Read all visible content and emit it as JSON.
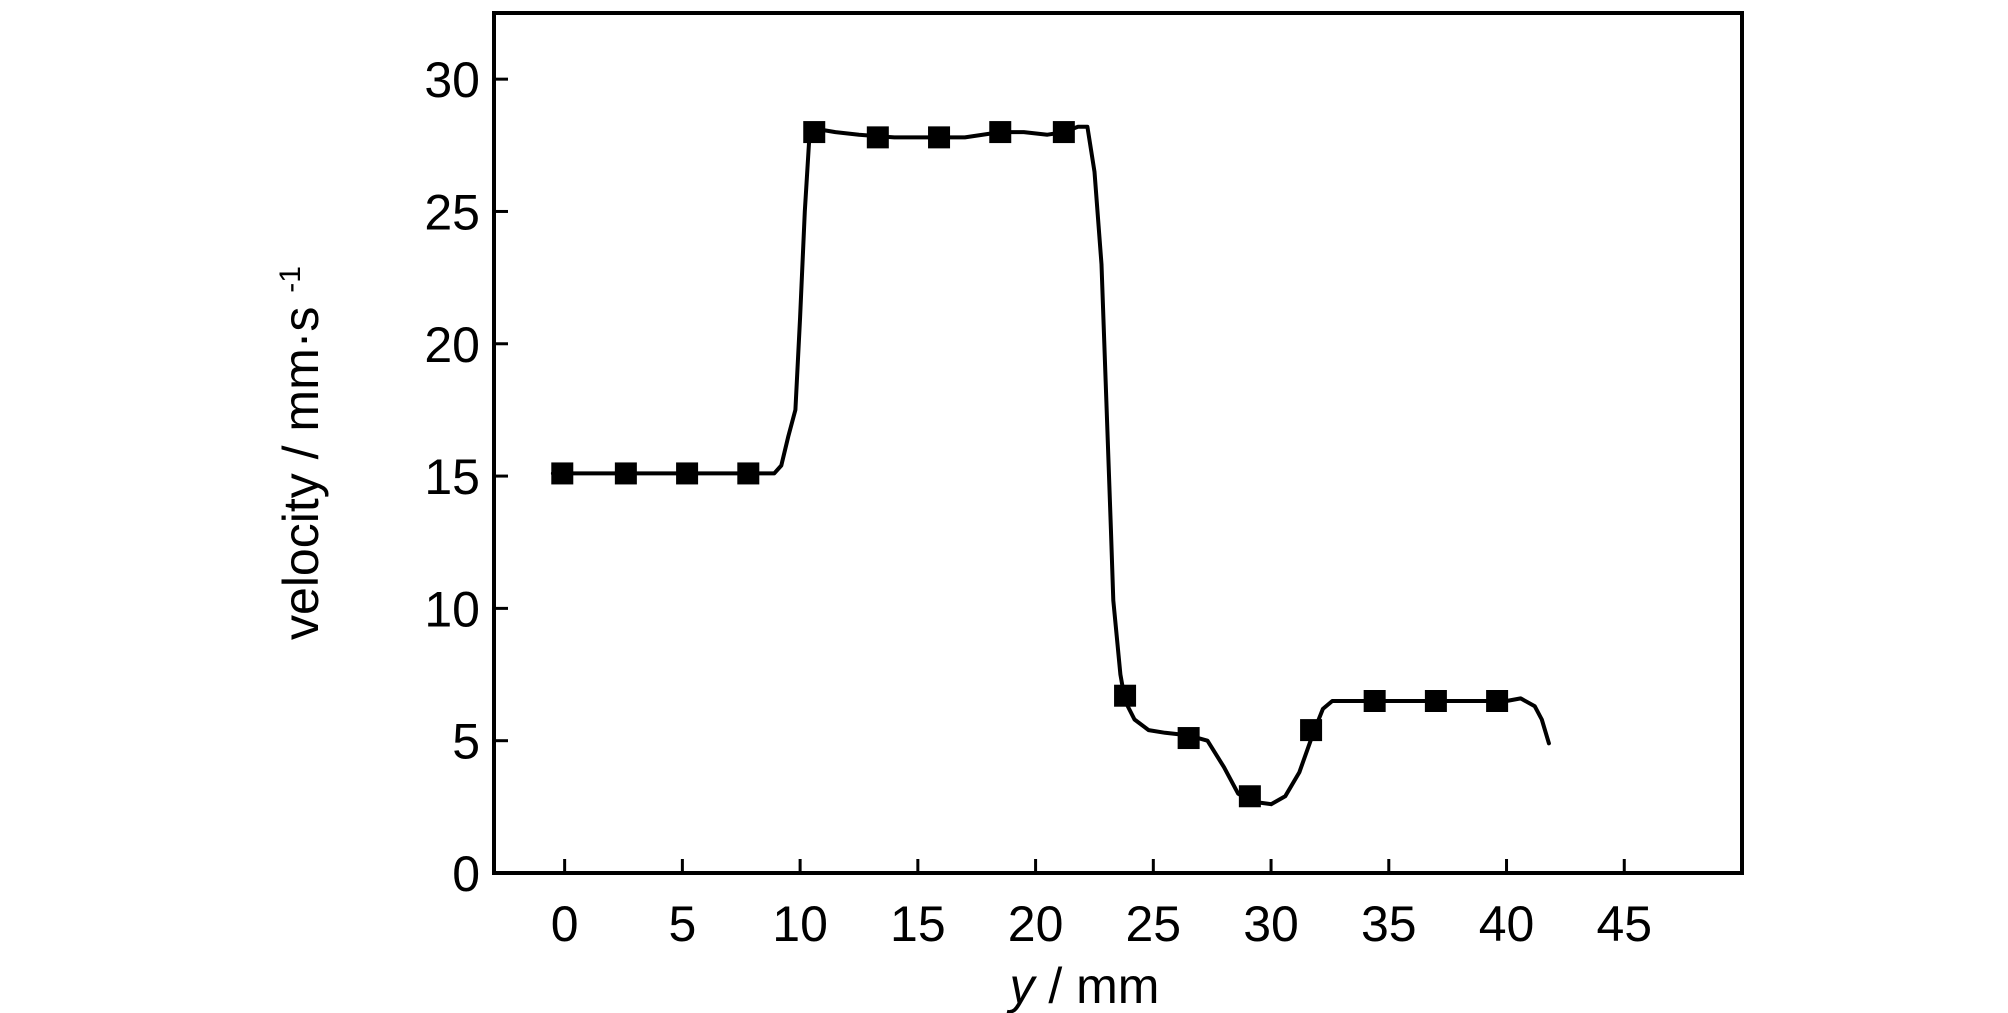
{
  "chart_data": {
    "type": "line",
    "title": "",
    "xlabel": "y / mm",
    "xlabel_var": "y",
    "xlabel_unit": " / mm",
    "ylabel": "velocity / mm·s-1",
    "ylabel_main": "velocity / mm·s",
    "ylabel_sup": "-1",
    "xlim": [
      -3,
      50
    ],
    "ylim": [
      0,
      32.5
    ],
    "xticks": [
      0,
      5,
      10,
      15,
      20,
      25,
      30,
      35,
      40,
      45
    ],
    "yticks": [
      0,
      5,
      10,
      15,
      20,
      25,
      30
    ],
    "grid": false,
    "legend": "none",
    "line_color": "#000000",
    "marker_color": "#000000",
    "marker_shape": "square",
    "series": [
      {
        "curve": [
          [
            -0.5,
            15.1
          ],
          [
            8.9,
            15.1
          ],
          [
            9.2,
            15.4
          ],
          [
            9.5,
            16.5
          ],
          [
            9.8,
            17.5
          ],
          [
            10.0,
            21
          ],
          [
            10.2,
            25
          ],
          [
            10.4,
            27.9
          ],
          [
            10.8,
            28.1
          ],
          [
            11.5,
            28.0
          ],
          [
            12.5,
            27.9
          ],
          [
            14,
            27.8
          ],
          [
            15.5,
            27.8
          ],
          [
            17,
            27.8
          ],
          [
            18.5,
            28.0
          ],
          [
            19.5,
            28.0
          ],
          [
            20.5,
            27.9
          ],
          [
            21.2,
            28.0
          ],
          [
            21.8,
            28.2
          ],
          [
            22.2,
            28.2
          ],
          [
            22.5,
            26.5
          ],
          [
            22.8,
            23
          ],
          [
            23.0,
            18
          ],
          [
            23.2,
            13
          ],
          [
            23.3,
            10.3
          ],
          [
            23.6,
            7.5
          ],
          [
            23.8,
            6.5
          ],
          [
            24.2,
            5.8
          ],
          [
            24.8,
            5.4
          ],
          [
            25.5,
            5.3
          ],
          [
            26.5,
            5.2
          ],
          [
            27.3,
            5.0
          ],
          [
            28.0,
            4.0
          ],
          [
            28.6,
            3.0
          ],
          [
            29.2,
            2.7
          ],
          [
            30.0,
            2.6
          ],
          [
            30.6,
            2.9
          ],
          [
            31.2,
            3.8
          ],
          [
            31.8,
            5.3
          ],
          [
            32.2,
            6.2
          ],
          [
            32.6,
            6.5
          ],
          [
            34,
            6.5
          ],
          [
            36,
            6.5
          ],
          [
            38,
            6.5
          ],
          [
            40,
            6.5
          ],
          [
            40.6,
            6.6
          ],
          [
            41.2,
            6.3
          ],
          [
            41.5,
            5.8
          ],
          [
            41.8,
            4.9
          ]
        ],
        "markers": [
          [
            -0.1,
            15.1
          ],
          [
            2.6,
            15.1
          ],
          [
            5.2,
            15.1
          ],
          [
            7.8,
            15.1
          ],
          [
            10.6,
            28.0
          ],
          [
            13.3,
            27.8
          ],
          [
            15.9,
            27.8
          ],
          [
            18.5,
            28.0
          ],
          [
            21.2,
            28.0
          ],
          [
            23.8,
            6.7
          ],
          [
            26.5,
            5.1
          ],
          [
            29.1,
            2.9
          ],
          [
            31.7,
            5.4
          ],
          [
            34.4,
            6.5
          ],
          [
            37.0,
            6.5
          ],
          [
            39.6,
            6.5
          ]
        ]
      }
    ]
  }
}
